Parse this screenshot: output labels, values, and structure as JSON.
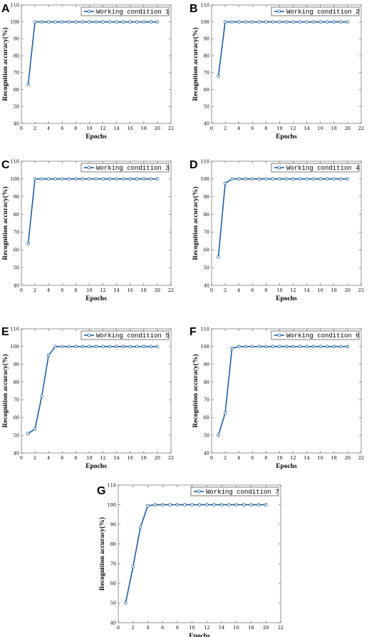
{
  "chart_data": [
    {
      "type": "line",
      "panel": "A",
      "xlabel": "Epochs",
      "ylabel": "Recognition accuracy(%)",
      "xlim": [
        0,
        22
      ],
      "ylim": [
        40,
        110
      ],
      "xticks": [
        0,
        2,
        4,
        6,
        8,
        10,
        12,
        14,
        16,
        18,
        20,
        22
      ],
      "yticks": [
        40,
        50,
        60,
        70,
        80,
        90,
        100,
        110
      ],
      "grid": false,
      "legend_position": "top-right",
      "series": [
        {
          "name": "Working condition 1",
          "color": "#1f5fa0",
          "x": [
            1,
            2,
            3,
            4,
            5,
            6,
            7,
            8,
            9,
            10,
            11,
            12,
            13,
            14,
            15,
            16,
            17,
            18,
            19,
            20
          ],
          "y": [
            63,
            100,
            100,
            100,
            100,
            100,
            100,
            100,
            100,
            100,
            100,
            100,
            100,
            100,
            100,
            100,
            100,
            100,
            100,
            100
          ]
        }
      ]
    },
    {
      "type": "line",
      "panel": "B",
      "xlabel": "Epochs",
      "ylabel": "Recognition accuracy(%)",
      "xlim": [
        0,
        22
      ],
      "ylim": [
        40,
        110
      ],
      "xticks": [
        0,
        2,
        4,
        6,
        8,
        10,
        12,
        14,
        16,
        18,
        20,
        22
      ],
      "yticks": [
        40,
        50,
        60,
        70,
        80,
        90,
        100,
        110
      ],
      "grid": false,
      "legend_position": "top-right",
      "series": [
        {
          "name": "Working condition 2",
          "color": "#1f5fa0",
          "x": [
            1,
            2,
            3,
            4,
            5,
            6,
            7,
            8,
            9,
            10,
            11,
            12,
            13,
            14,
            15,
            16,
            17,
            18,
            19,
            20
          ],
          "y": [
            68,
            100,
            100,
            100,
            100,
            100,
            100,
            100,
            100,
            100,
            100,
            100,
            100,
            100,
            100,
            100,
            100,
            100,
            100,
            100
          ]
        }
      ]
    },
    {
      "type": "line",
      "panel": "C",
      "xlabel": "Epochs",
      "ylabel": "Recognition accuracy(%)",
      "xlim": [
        0,
        22
      ],
      "ylim": [
        40,
        110
      ],
      "xticks": [
        0,
        2,
        4,
        6,
        8,
        10,
        12,
        14,
        16,
        18,
        20,
        22
      ],
      "yticks": [
        40,
        50,
        60,
        70,
        80,
        90,
        100,
        110
      ],
      "grid": false,
      "legend_position": "top-right",
      "series": [
        {
          "name": "Working condition 3",
          "color": "#1f5fa0",
          "x": [
            1,
            2,
            3,
            4,
            5,
            6,
            7,
            8,
            9,
            10,
            11,
            12,
            13,
            14,
            15,
            16,
            17,
            18,
            19,
            20
          ],
          "y": [
            63.5,
            100,
            100,
            100,
            100,
            100,
            100,
            100,
            100,
            100,
            100,
            100,
            100,
            100,
            100,
            100,
            100,
            100,
            100,
            100
          ]
        }
      ]
    },
    {
      "type": "line",
      "panel": "D",
      "xlabel": "Epochs",
      "ylabel": "Recognition accuracy(%)",
      "xlim": [
        0,
        22
      ],
      "ylim": [
        40,
        110
      ],
      "xticks": [
        0,
        2,
        4,
        6,
        8,
        10,
        12,
        14,
        16,
        18,
        20,
        22
      ],
      "yticks": [
        40,
        50,
        60,
        70,
        80,
        90,
        100,
        110
      ],
      "grid": false,
      "legend_position": "top-right",
      "series": [
        {
          "name": "Working condition 4",
          "color": "#1f5fa0",
          "x": [
            1,
            2,
            3,
            4,
            5,
            6,
            7,
            8,
            9,
            10,
            11,
            12,
            13,
            14,
            15,
            16,
            17,
            18,
            19,
            20
          ],
          "y": [
            56,
            97.5,
            100,
            100,
            100,
            100,
            100,
            100,
            100,
            100,
            100,
            100,
            100,
            100,
            100,
            100,
            100,
            100,
            100,
            100
          ]
        }
      ]
    },
    {
      "type": "line",
      "panel": "E",
      "xlabel": "Epochs",
      "ylabel": "Recognition accuracy(%)",
      "xlim": [
        0,
        22
      ],
      "ylim": [
        40,
        110
      ],
      "xticks": [
        0,
        2,
        4,
        6,
        8,
        10,
        12,
        14,
        16,
        18,
        20,
        22
      ],
      "yticks": [
        40,
        50,
        60,
        70,
        80,
        90,
        100,
        110
      ],
      "grid": false,
      "legend_position": "top-right",
      "series": [
        {
          "name": "Working condition 5",
          "color": "#1f5fa0",
          "x": [
            1,
            2,
            3,
            4,
            5,
            6,
            7,
            8,
            9,
            10,
            11,
            12,
            13,
            14,
            15,
            16,
            17,
            18,
            19,
            20
          ],
          "y": [
            51,
            53.5,
            72,
            95,
            100,
            100,
            100,
            100,
            100,
            100,
            100,
            100,
            100,
            100,
            100,
            100,
            100,
            100,
            100,
            100
          ]
        }
      ]
    },
    {
      "type": "line",
      "panel": "F",
      "xlabel": "Epochs",
      "ylabel": "Recognition accuracy(%)",
      "xlim": [
        0,
        22
      ],
      "ylim": [
        40,
        110
      ],
      "xticks": [
        0,
        2,
        4,
        6,
        8,
        10,
        12,
        14,
        16,
        18,
        20,
        22
      ],
      "yticks": [
        40,
        50,
        60,
        70,
        80,
        90,
        100,
        110
      ],
      "grid": false,
      "legend_position": "top-right",
      "series": [
        {
          "name": "Working condition 6",
          "color": "#1f5fa0",
          "x": [
            1,
            2,
            3,
            4,
            5,
            6,
            7,
            8,
            9,
            10,
            11,
            12,
            13,
            14,
            15,
            16,
            17,
            18,
            19,
            20
          ],
          "y": [
            50,
            62.5,
            99,
            100,
            100,
            100,
            100,
            100,
            100,
            100,
            100,
            100,
            100,
            100,
            100,
            100,
            100,
            100,
            100,
            100
          ]
        }
      ]
    },
    {
      "type": "line",
      "panel": "G",
      "xlabel": "Epochs",
      "ylabel": "Recognition accuracy(%)",
      "xlim": [
        0,
        22
      ],
      "ylim": [
        40,
        110
      ],
      "xticks": [
        0,
        2,
        4,
        6,
        8,
        10,
        12,
        14,
        16,
        18,
        20,
        22
      ],
      "yticks": [
        40,
        50,
        60,
        70,
        80,
        90,
        100,
        110
      ],
      "grid": false,
      "legend_position": "top-right",
      "series": [
        {
          "name": "Working condition 7",
          "color": "#1f5fa0",
          "x": [
            1,
            2,
            3,
            4,
            5,
            6,
            7,
            8,
            9,
            10,
            11,
            12,
            13,
            14,
            15,
            16,
            17,
            18,
            19,
            20
          ],
          "y": [
            50,
            68.5,
            88.5,
            99.5,
            100,
            100,
            100,
            100,
            100,
            100,
            100,
            100,
            100,
            100,
            100,
            100,
            100,
            100,
            100,
            100
          ]
        }
      ]
    }
  ]
}
